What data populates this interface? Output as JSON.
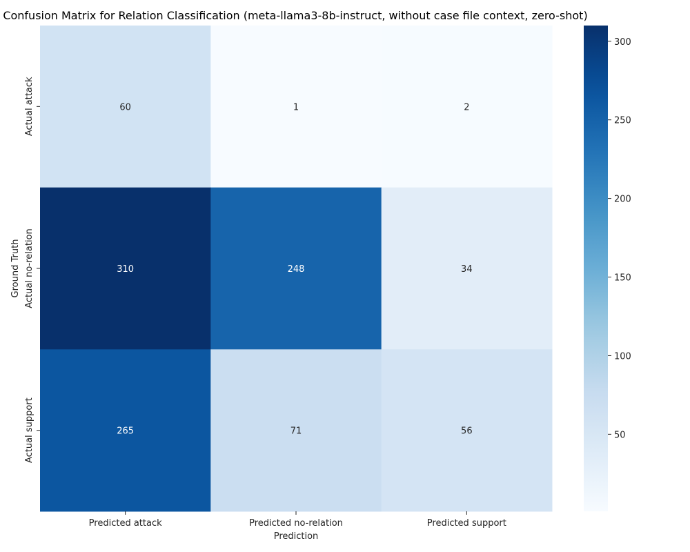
{
  "chart_data": {
    "type": "heatmap",
    "title": "Confusion Matrix for Relation Classification (meta-llama3-8b-instruct, without case file context, zero-shot)",
    "xlabel": "Prediction",
    "ylabel": "Ground Truth",
    "x_categories": [
      "Predicted attack",
      "Predicted no-relation",
      "Predicted support"
    ],
    "y_categories": [
      "Actual attack",
      "Actual no-relation",
      "Actual support"
    ],
    "values": [
      [
        60,
        1,
        2
      ],
      [
        310,
        248,
        34
      ],
      [
        265,
        71,
        56
      ]
    ],
    "colormap": "Blues",
    "color_min": 1,
    "color_max": 310,
    "colorbar_ticks": [
      50,
      100,
      150,
      200,
      250,
      300
    ]
  }
}
